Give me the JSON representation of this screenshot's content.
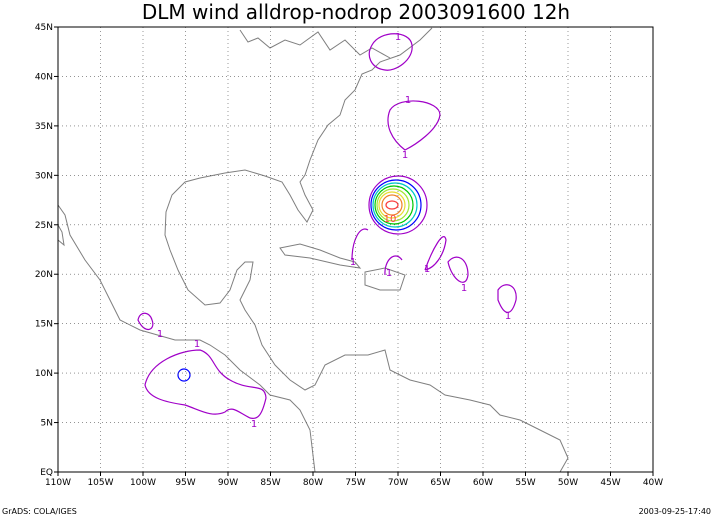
{
  "title": "DLM wind alldrop-nodrop 2003091600 12h",
  "x_ticks": [
    {
      "value": -110,
      "label": "110W"
    },
    {
      "value": -105,
      "label": "105W"
    },
    {
      "value": -100,
      "label": "100W"
    },
    {
      "value": -95,
      "label": "95W"
    },
    {
      "value": -90,
      "label": "90W"
    },
    {
      "value": -85,
      "label": "85W"
    },
    {
      "value": -80,
      "label": "80W"
    },
    {
      "value": -75,
      "label": "75W"
    },
    {
      "value": -70,
      "label": "70W"
    },
    {
      "value": -65,
      "label": "65W"
    },
    {
      "value": -60,
      "label": "60W"
    },
    {
      "value": -55,
      "label": "55W"
    },
    {
      "value": -50,
      "label": "50W"
    },
    {
      "value": -45,
      "label": "45W"
    },
    {
      "value": -40,
      "label": "40W"
    }
  ],
  "y_ticks": [
    {
      "value": 0,
      "label": "EQ"
    },
    {
      "value": 5,
      "label": "5N"
    },
    {
      "value": 10,
      "label": "10N"
    },
    {
      "value": 15,
      "label": "15N"
    },
    {
      "value": 20,
      "label": "20N"
    },
    {
      "value": 25,
      "label": "25N"
    },
    {
      "value": 30,
      "label": "30N"
    },
    {
      "value": 35,
      "label": "35N"
    },
    {
      "value": 40,
      "label": "40N"
    },
    {
      "value": 45,
      "label": "45N"
    }
  ],
  "contour_labels": [
    "1",
    "1",
    "1",
    "1",
    "1",
    "1",
    "1",
    "1",
    "1",
    "1",
    "1",
    "10"
  ],
  "footer": {
    "left": "GrADS: COLA/IGES",
    "right": "2003-09-25-17:40"
  }
}
